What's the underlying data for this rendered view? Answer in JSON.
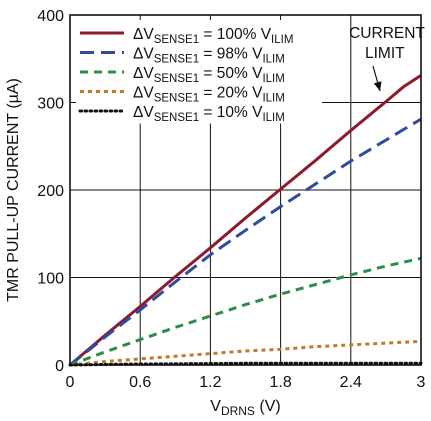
{
  "chart_data": {
    "type": "line",
    "ylabel": "TMR PULL-UP CURRENT (µA)",
    "xlabel_main": "V",
    "xlabel_sub": "DRNS",
    "xlabel_tail": " (V)",
    "xlim": [
      0,
      3
    ],
    "ylim": [
      0,
      400
    ],
    "xticks": [
      "0",
      "0.6",
      "1.2",
      "1.8",
      "2.4",
      "3"
    ],
    "yticks": [
      "0",
      "100",
      "200",
      "300",
      "400"
    ],
    "grid": true,
    "legend_position": "top-left",
    "annotation": {
      "line1": "CURRENT",
      "line2": "LIMIT",
      "target": {
        "x": 2.65,
        "y": 312
      }
    },
    "series": [
      {
        "legend_pre": "ΔV",
        "legend_sub": "SENSE1",
        "legend_mid": " = 100% V",
        "legend_tail": "ILIM",
        "color": "#8b1a2b",
        "dash": "solid",
        "x": [
          0,
          0.3,
          0.6,
          0.9,
          1.2,
          1.5,
          1.8,
          2.1,
          2.4,
          2.7,
          2.85,
          3.0
        ],
        "y": [
          0,
          34,
          67,
          101,
          134,
          168,
          201,
          234,
          268,
          301,
          318,
          331
        ]
      },
      {
        "legend_pre": "ΔV",
        "legend_sub": "SENSE1",
        "legend_mid": " = 98% V",
        "legend_tail": "ILIM",
        "color": "#2f4aa0",
        "dash": "long",
        "x": [
          0,
          0.3,
          0.6,
          0.9,
          1.2,
          1.5,
          1.8,
          2.1,
          2.4,
          2.7,
          3.0
        ],
        "y": [
          0,
          32,
          63,
          95,
          126,
          154,
          181,
          207,
          233,
          257,
          281
        ]
      },
      {
        "legend_pre": "ΔV",
        "legend_sub": "SENSE1",
        "legend_mid": " = 50% V",
        "legend_tail": "ILIM",
        "color": "#2e8b4a",
        "dash": "medium",
        "x": [
          0,
          0.3,
          0.6,
          0.9,
          1.2,
          1.5,
          1.8,
          2.1,
          2.4,
          2.7,
          3.0
        ],
        "y": [
          0,
          15,
          29,
          43,
          56,
          69,
          81,
          92,
          103,
          113,
          122
        ]
      },
      {
        "legend_pre": "ΔV",
        "legend_sub": "SENSE1",
        "legend_mid": " = 20% V",
        "legend_tail": "ILIM",
        "color": "#c07a2c",
        "dash": "short",
        "x": [
          0,
          0.3,
          0.6,
          0.9,
          1.2,
          1.5,
          1.8,
          2.1,
          2.4,
          2.7,
          3.0
        ],
        "y": [
          0,
          4,
          7,
          10,
          13,
          16,
          18,
          21,
          23,
          25,
          27
        ]
      },
      {
        "legend_pre": "ΔV",
        "legend_sub": "SENSE1",
        "legend_mid": " = 10% V",
        "legend_tail": "ILIM",
        "color": "#111111",
        "dash": "dotted",
        "x": [
          0,
          0.5,
          1.0,
          1.5,
          2.0,
          2.5,
          3.0
        ],
        "y": [
          0,
          1,
          1.5,
          2,
          2,
          2,
          2
        ]
      }
    ]
  }
}
